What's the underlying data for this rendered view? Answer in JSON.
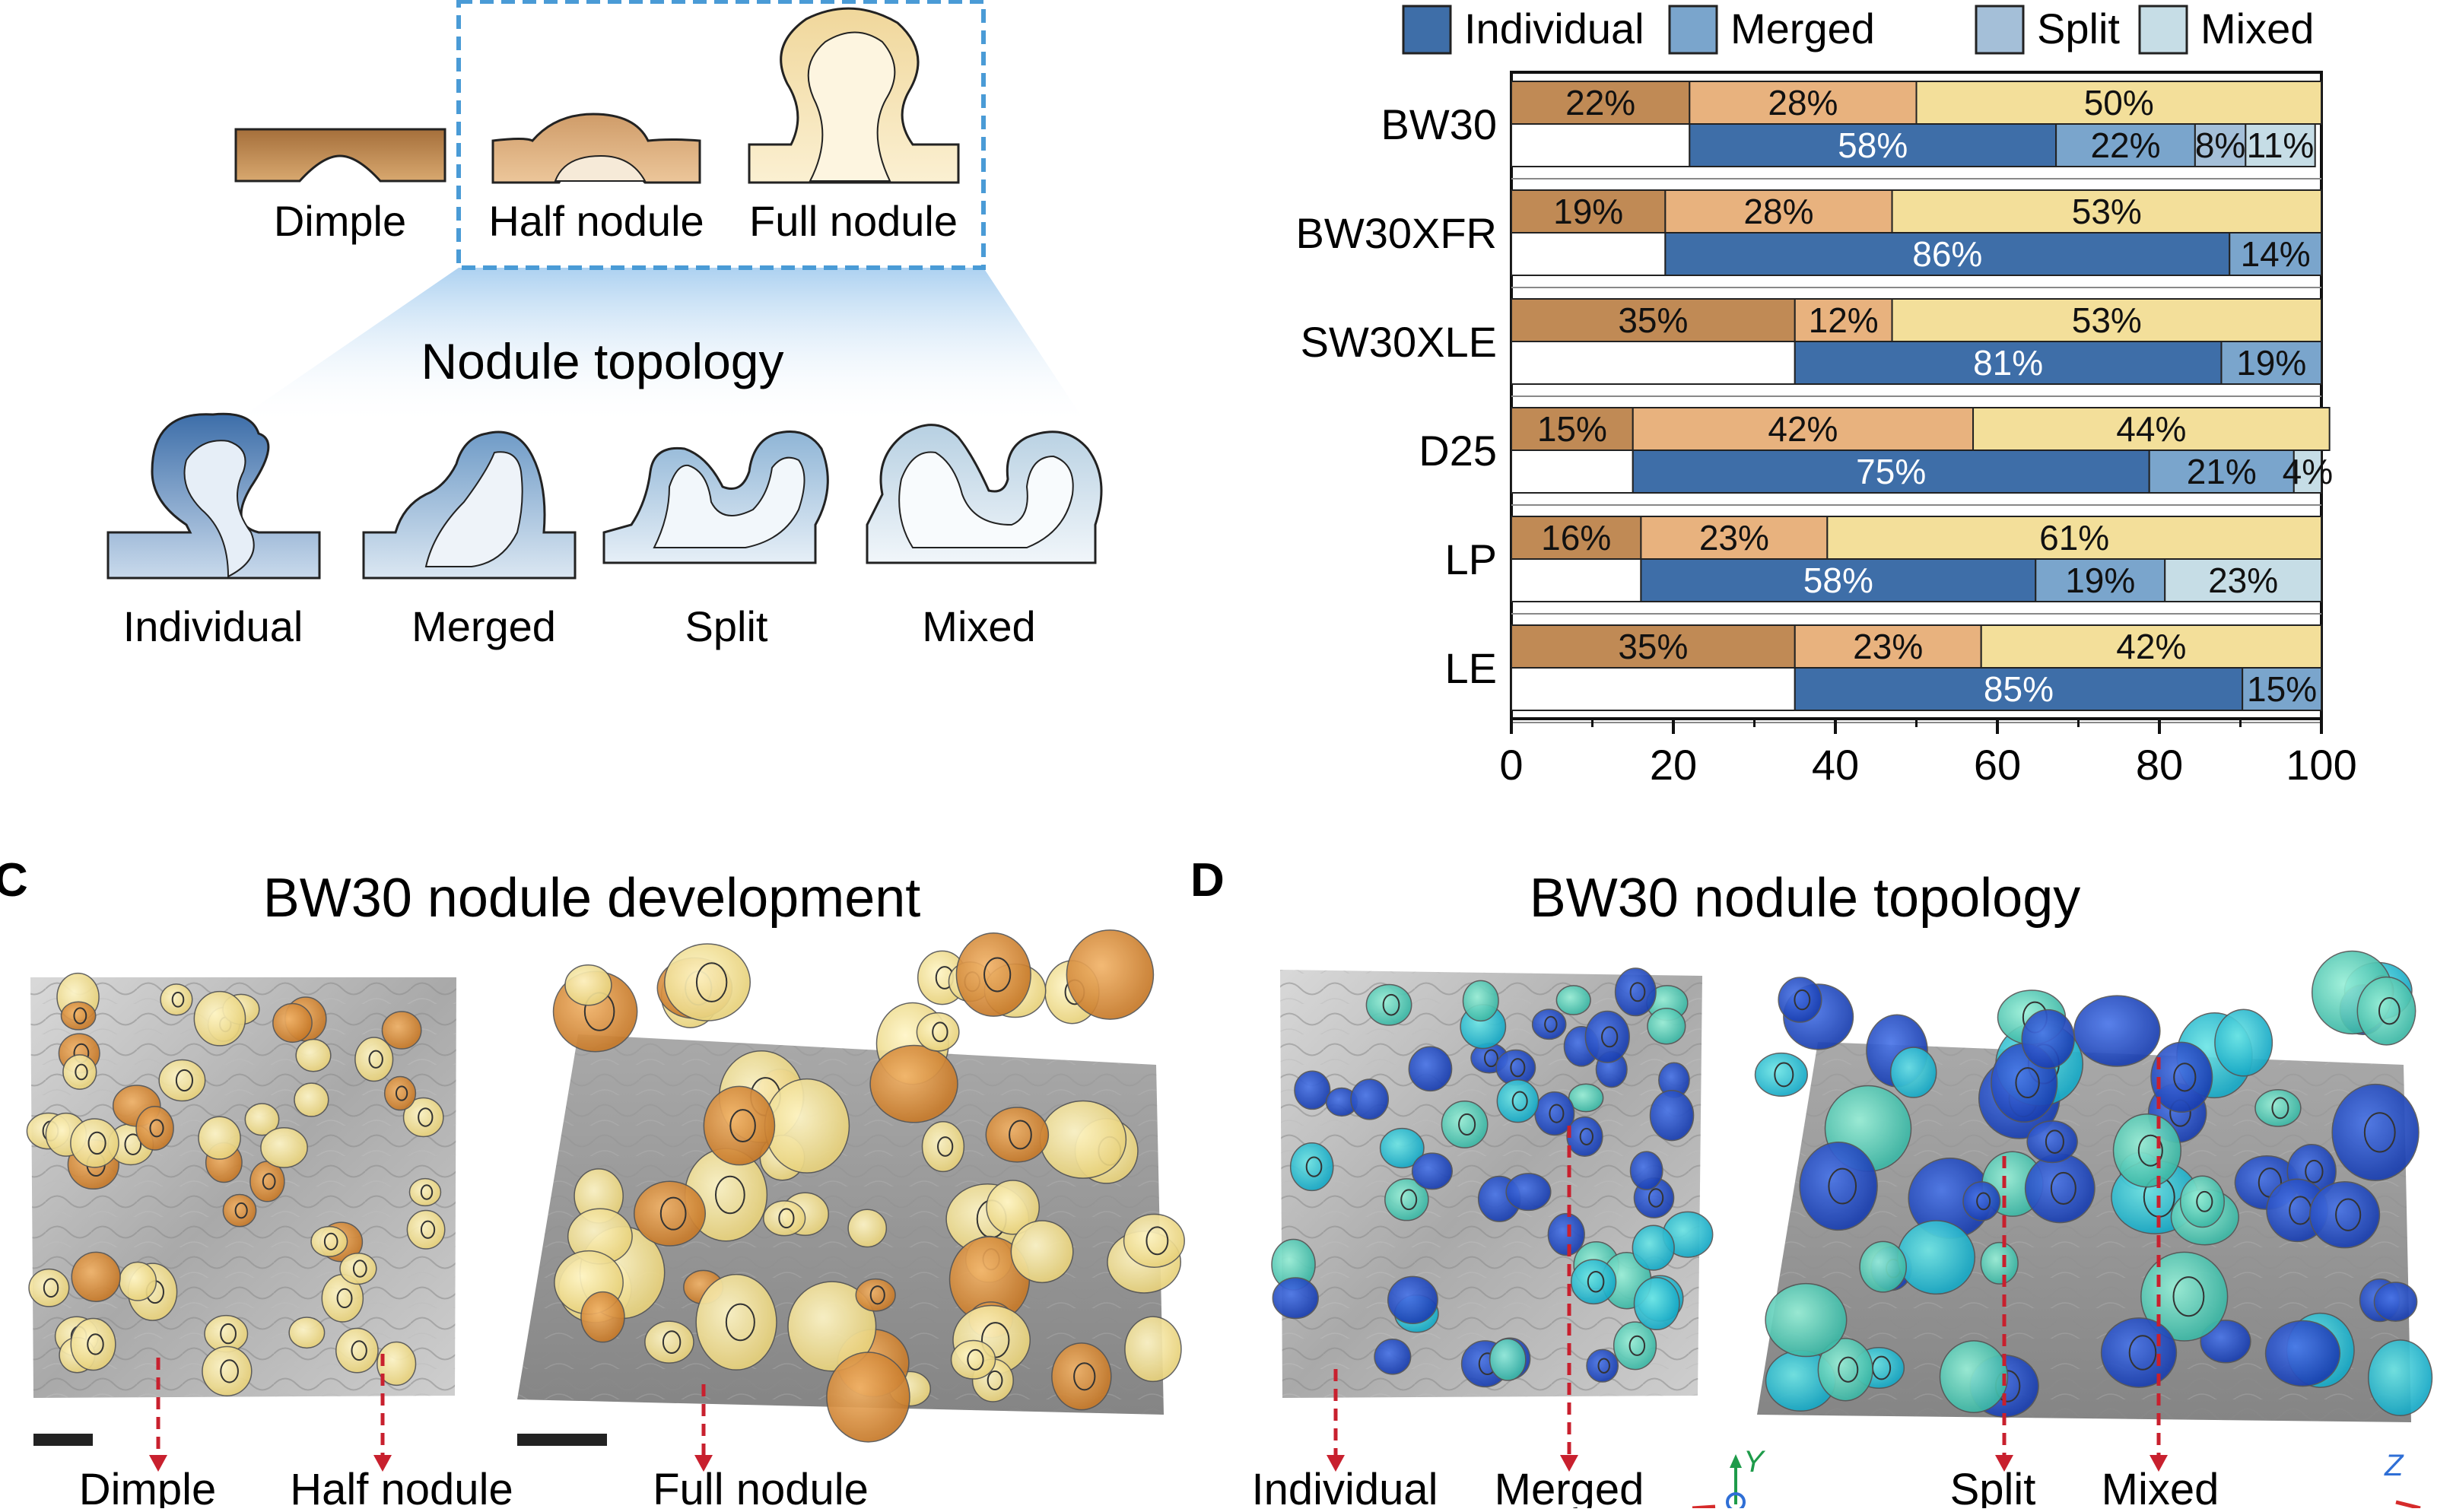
{
  "panelA": {
    "shape_labels": [
      "Dimple",
      "Half nodule",
      "Full nodule"
    ],
    "topology_title": "Nodule topology",
    "topology_labels": [
      "Individual",
      "Merged",
      "Split",
      "Mixed"
    ]
  },
  "chart_data": {
    "type": "bar",
    "orientation": "horizontal",
    "stacked": true,
    "categories": [
      "BW30",
      "BW30XFR",
      "SW30XLE",
      "D25",
      "LP",
      "LE"
    ],
    "xlim": [
      0,
      100
    ],
    "xticks": [
      "0",
      "20",
      "40",
      "60",
      "80",
      "100"
    ],
    "legend_position": "top",
    "legend": [
      "Individual",
      "Merged",
      "Split",
      "Mixed"
    ],
    "development": {
      "colors": [
        "#c08a55",
        "#e8b27e",
        "#f3df9a"
      ],
      "rows": [
        {
          "values": [
            22,
            28,
            50
          ],
          "labels": [
            "22%",
            "28%",
            "50%"
          ]
        },
        {
          "values": [
            19,
            28,
            53
          ],
          "labels": [
            "19%",
            "28%",
            "53%"
          ]
        },
        {
          "values": [
            35,
            12,
            53
          ],
          "labels": [
            "35%",
            "12%",
            "53%"
          ]
        },
        {
          "values": [
            15,
            42,
            44
          ],
          "labels": [
            "15%",
            "42%",
            "44%"
          ]
        },
        {
          "values": [
            16,
            23,
            61
          ],
          "labels": [
            "16%",
            "23%",
            "61%"
          ]
        },
        {
          "values": [
            35,
            23,
            42
          ],
          "labels": [
            "35%",
            "23%",
            "42%"
          ]
        }
      ]
    },
    "topology": {
      "colors": [
        "#3e6ea8",
        "#7aa5cc",
        "#a4bfd8",
        "#c6dde6"
      ],
      "rows": [
        {
          "values": [
            58,
            22,
            8,
            11
          ],
          "labels": [
            "58%",
            "22%",
            "8%",
            "11%"
          ]
        },
        {
          "values": [
            86,
            14,
            0,
            0
          ],
          "labels": [
            "86%",
            "14%",
            "",
            ""
          ]
        },
        {
          "values": [
            81,
            19,
            0,
            0
          ],
          "labels": [
            "81%",
            "19%",
            "",
            ""
          ]
        },
        {
          "values": [
            75,
            21,
            0,
            4
          ],
          "labels": [
            "75%",
            "21%",
            "",
            "4%"
          ]
        },
        {
          "values": [
            58,
            19,
            0,
            23
          ],
          "labels": [
            "58%",
            "19%",
            "",
            "23%"
          ]
        },
        {
          "values": [
            85,
            15,
            0,
            0
          ],
          "labels": [
            "85%",
            "15%",
            "",
            ""
          ]
        }
      ]
    }
  },
  "panelC": {
    "letter": "C",
    "title": "BW30 nodule development",
    "arrow_labels": [
      "Dimple",
      "Half nodule",
      "Full nodule"
    ]
  },
  "panelD": {
    "letter": "D",
    "title": "BW30 nodule topology",
    "arrow_labels": [
      "Individual",
      "Merged",
      "Split",
      "Mixed"
    ],
    "axis_labels": [
      "Y",
      "Z"
    ]
  }
}
